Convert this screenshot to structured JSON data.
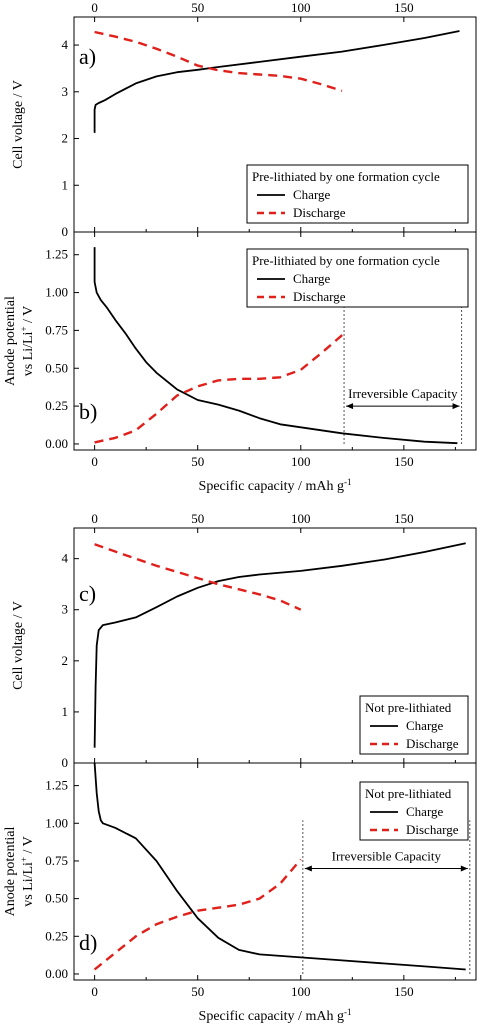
{
  "chart_data": [
    {
      "id": "a",
      "type": "line",
      "panel_label": "a)",
      "ylabel": "Cell voltage / V",
      "xlim": [
        -10,
        185
      ],
      "ylim": [
        0,
        4.6
      ],
      "xticks": [
        0,
        50,
        100,
        150
      ],
      "yticks": [
        0,
        1,
        2,
        3,
        4
      ],
      "xticks_position": "top",
      "legend": {
        "title": "Pre-lithiated by one formation cycle",
        "placement": "bottom-right"
      },
      "series": [
        {
          "name": "Charge",
          "color": "#000000",
          "style": "solid",
          "x": [
            0,
            0,
            0.5,
            2,
            5,
            10,
            20,
            30,
            40,
            50,
            60,
            80,
            100,
            120,
            140,
            160,
            177
          ],
          "y": [
            2.12,
            2.62,
            2.72,
            2.76,
            2.82,
            2.95,
            3.18,
            3.33,
            3.42,
            3.47,
            3.53,
            3.64,
            3.75,
            3.86,
            4.0,
            4.15,
            4.3
          ]
        },
        {
          "name": "Discharge",
          "color": "#e0201b",
          "style": "dashed",
          "x": [
            0,
            10,
            20,
            30,
            40,
            50,
            60,
            70,
            80,
            90,
            100,
            110,
            120
          ],
          "y": [
            4.28,
            4.18,
            4.07,
            3.92,
            3.75,
            3.56,
            3.46,
            3.4,
            3.37,
            3.34,
            3.28,
            3.16,
            3.02
          ]
        }
      ]
    },
    {
      "id": "b",
      "type": "line",
      "panel_label": "b)",
      "ylabel_lines": [
        "Anode potential",
        "vs Li/Li",
        "+",
        " / V"
      ],
      "xlabel": "Specific capacity / mAh g",
      "xlabel_sup": "-1",
      "xlim": [
        -10,
        185
      ],
      "ylim": [
        -0.04,
        1.4
      ],
      "xticks": [
        0,
        50,
        100,
        150
      ],
      "yticks": [
        "0.00",
        "0.25",
        "0.50",
        "0.75",
        "1.00",
        "1.25"
      ],
      "legend": {
        "title": "Pre-lithiated by one formation cycle",
        "placement": "top-right"
      },
      "annotation": {
        "text": "Irreversible Capacity",
        "from": 121,
        "to": 178,
        "y": 0.25
      },
      "vlines": [
        121,
        178
      ],
      "series": [
        {
          "name": "Charge",
          "color": "#000000",
          "style": "solid",
          "x": [
            0,
            0,
            1,
            3,
            6,
            10,
            15,
            20,
            25,
            30,
            40,
            50,
            60,
            70,
            80,
            90,
            100,
            120,
            140,
            160,
            176
          ],
          "y": [
            1.3,
            1.07,
            1.0,
            0.95,
            0.9,
            0.82,
            0.73,
            0.63,
            0.54,
            0.47,
            0.36,
            0.29,
            0.26,
            0.22,
            0.17,
            0.13,
            0.11,
            0.07,
            0.04,
            0.015,
            0.005
          ]
        },
        {
          "name": "Discharge",
          "color": "#e0201b",
          "style": "dashed",
          "x": [
            0,
            10,
            20,
            30,
            40,
            50,
            60,
            70,
            80,
            90,
            100,
            110,
            121
          ],
          "y": [
            0.01,
            0.04,
            0.09,
            0.2,
            0.32,
            0.38,
            0.42,
            0.43,
            0.43,
            0.44,
            0.49,
            0.6,
            0.73
          ]
        }
      ]
    },
    {
      "id": "c",
      "type": "line",
      "panel_label": "c)",
      "ylabel": "Cell voltage / V",
      "xlim": [
        -10,
        185
      ],
      "ylim": [
        0,
        4.6
      ],
      "xticks": [
        0,
        50,
        100,
        150
      ],
      "yticks": [
        0,
        1,
        2,
        3,
        4
      ],
      "xticks_position": "top",
      "legend": {
        "title": "Not pre-lithiated",
        "placement": "bottom-right"
      },
      "series": [
        {
          "name": "Charge",
          "color": "#000000",
          "style": "solid",
          "x": [
            0,
            0.5,
            1,
            2,
            4,
            10,
            20,
            30,
            40,
            50,
            60,
            70,
            80,
            100,
            120,
            140,
            160,
            180
          ],
          "y": [
            0.3,
            1.5,
            2.3,
            2.6,
            2.7,
            2.75,
            2.85,
            3.05,
            3.26,
            3.43,
            3.56,
            3.64,
            3.69,
            3.76,
            3.86,
            3.98,
            4.13,
            4.3
          ]
        },
        {
          "name": "Discharge",
          "color": "#e0201b",
          "style": "dashed",
          "x": [
            0,
            10,
            20,
            30,
            40,
            50,
            60,
            70,
            80,
            90,
            100
          ],
          "y": [
            4.28,
            4.14,
            4.0,
            3.86,
            3.74,
            3.62,
            3.5,
            3.4,
            3.3,
            3.18,
            3.0
          ]
        }
      ]
    },
    {
      "id": "d",
      "type": "line",
      "panel_label": "d)",
      "ylabel_lines": [
        "Anode potential",
        "vs Li/Li",
        "+",
        " / V"
      ],
      "xlabel": "Specific capacity / mAh g",
      "xlabel_sup": "-1",
      "xlim": [
        -10,
        185
      ],
      "ylim": [
        -0.04,
        1.4
      ],
      "xticks": [
        0,
        50,
        100,
        150
      ],
      "yticks": [
        "0.00",
        "0.25",
        "0.50",
        "0.75",
        "1.00",
        "1.25"
      ],
      "legend": {
        "title": "Not pre-lithiated",
        "placement": "top-right"
      },
      "annotation": {
        "text": "Irreversible Capacity",
        "from": 101,
        "to": 182,
        "y": 0.7
      },
      "vlines": [
        101,
        182
      ],
      "series": [
        {
          "name": "Charge",
          "color": "#000000",
          "style": "solid",
          "x": [
            0,
            1,
            2,
            3,
            4,
            6,
            10,
            20,
            30,
            40,
            50,
            60,
            70,
            80,
            100,
            120,
            140,
            160,
            180
          ],
          "y": [
            1.4,
            1.2,
            1.08,
            1.02,
            1.0,
            0.99,
            0.97,
            0.9,
            0.75,
            0.55,
            0.37,
            0.24,
            0.16,
            0.13,
            0.11,
            0.09,
            0.07,
            0.05,
            0.03
          ]
        },
        {
          "name": "Discharge",
          "color": "#e0201b",
          "style": "dashed",
          "x": [
            0,
            10,
            20,
            30,
            40,
            50,
            60,
            70,
            80,
            90,
            100
          ],
          "y": [
            0.03,
            0.14,
            0.25,
            0.33,
            0.38,
            0.42,
            0.44,
            0.46,
            0.5,
            0.6,
            0.76
          ]
        }
      ]
    }
  ]
}
